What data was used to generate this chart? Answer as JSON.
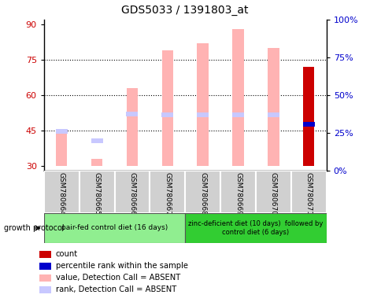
{
  "title": "GDS5033 / 1391803_at",
  "samples": [
    "GSM780664",
    "GSM780665",
    "GSM780666",
    "GSM780667",
    "GSM780668",
    "GSM780669",
    "GSM780670",
    "GSM780671"
  ],
  "ylim_left": [
    28,
    92
  ],
  "ylim_right": [
    0,
    100
  ],
  "yticks_left": [
    30,
    45,
    60,
    75,
    90
  ],
  "yticks_right": [
    0,
    25,
    50,
    75,
    100
  ],
  "right_tick_labels": [
    "0%",
    "25%",
    "50%",
    "75%",
    "100%"
  ],
  "pink_bars_bottom": [
    30,
    30,
    30,
    30,
    30,
    30,
    30,
    28
  ],
  "pink_bars_top": [
    44,
    33,
    63,
    79,
    82,
    88,
    80,
    28
  ],
  "rank_markers_y": [
    44.5,
    40.5,
    52,
    51.5,
    51.5,
    51.5,
    51.5,
    null
  ],
  "blue_marker_y": [
    null,
    null,
    null,
    null,
    null,
    null,
    null,
    47.5
  ],
  "red_bar_bottom": [
    28,
    28,
    28,
    28,
    28,
    28,
    28,
    30
  ],
  "red_bar_top": [
    28,
    28,
    28,
    28,
    28,
    28,
    28,
    72
  ],
  "group1_color": "#90ee90",
  "group2_color": "#32cd32",
  "group1_label": "pair-fed control diet (16 days)",
  "group2_label": "zinc-deficient diet (10 days)  followed by\ncontrol diet (6 days)",
  "legend_items": [
    {
      "color": "#cc0000",
      "label": "count"
    },
    {
      "color": "#0000cc",
      "label": "percentile rank within the sample"
    },
    {
      "color": "#ffb3b3",
      "label": "value, Detection Call = ABSENT"
    },
    {
      "color": "#c8c8ff",
      "label": "rank, Detection Call = ABSENT"
    }
  ],
  "growth_protocol_label": "growth protocol",
  "left_tick_color": "#cc0000",
  "right_tick_color": "#0000cc",
  "bar_width": 0.32,
  "pink_color": "#ffb3b3",
  "rank_color": "#c8c8ff",
  "red_color": "#cc0000",
  "blue_color": "#0000cc",
  "grid_lines": [
    45,
    60,
    75
  ],
  "dotted_grid_lines": [
    45,
    60,
    75
  ]
}
